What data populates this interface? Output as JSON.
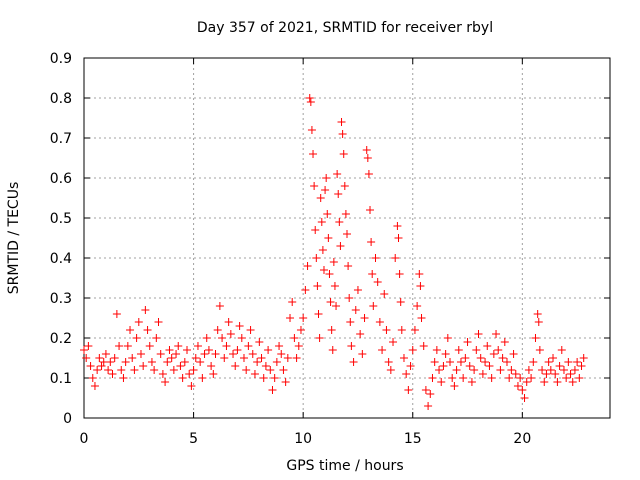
{
  "chart_data": {
    "type": "scatter",
    "title": "Day 357 of 2021, SRMTID for receiver rbyl",
    "xlabel": "GPS time / hours",
    "ylabel": "SRMTID / TECUs",
    "xlim": [
      0,
      24
    ],
    "ylim": [
      0,
      0.9
    ],
    "x_ticks": [
      "0",
      "5",
      "10",
      "15",
      "20"
    ],
    "y_ticks": [
      "0",
      "0.1",
      "0.2",
      "0.3",
      "0.4",
      "0.5",
      "0.6",
      "0.7",
      "0.8",
      "0.9"
    ],
    "grid": true,
    "marker": "plus",
    "series": [
      {
        "name": "SRMTID",
        "color": "#ff0000",
        "points": [
          [
            0.0,
            0.17
          ],
          [
            0.1,
            0.15
          ],
          [
            0.2,
            0.18
          ],
          [
            0.3,
            0.13
          ],
          [
            0.4,
            0.1
          ],
          [
            0.5,
            0.08
          ],
          [
            0.6,
            0.12
          ],
          [
            0.7,
            0.15
          ],
          [
            0.8,
            0.13
          ],
          [
            0.9,
            0.14
          ],
          [
            1.0,
            0.16
          ],
          [
            1.1,
            0.12
          ],
          [
            1.2,
            0.14
          ],
          [
            1.3,
            0.11
          ],
          [
            1.4,
            0.15
          ],
          [
            1.5,
            0.26
          ],
          [
            1.6,
            0.18
          ],
          [
            1.7,
            0.12
          ],
          [
            1.8,
            0.1
          ],
          [
            1.9,
            0.14
          ],
          [
            2.0,
            0.18
          ],
          [
            2.1,
            0.22
          ],
          [
            2.2,
            0.15
          ],
          [
            2.3,
            0.12
          ],
          [
            2.4,
            0.2
          ],
          [
            2.5,
            0.24
          ],
          [
            2.6,
            0.16
          ],
          [
            2.7,
            0.13
          ],
          [
            2.8,
            0.27
          ],
          [
            2.9,
            0.22
          ],
          [
            3.0,
            0.18
          ],
          [
            3.1,
            0.14
          ],
          [
            3.2,
            0.12
          ],
          [
            3.3,
            0.2
          ],
          [
            3.4,
            0.24
          ],
          [
            3.5,
            0.16
          ],
          [
            3.6,
            0.11
          ],
          [
            3.7,
            0.09
          ],
          [
            3.8,
            0.14
          ],
          [
            3.9,
            0.17
          ],
          [
            4.0,
            0.15
          ],
          [
            4.1,
            0.12
          ],
          [
            4.2,
            0.16
          ],
          [
            4.3,
            0.18
          ],
          [
            4.4,
            0.13
          ],
          [
            4.5,
            0.1
          ],
          [
            4.6,
            0.14
          ],
          [
            4.7,
            0.17
          ],
          [
            4.8,
            0.11
          ],
          [
            4.9,
            0.08
          ],
          [
            5.0,
            0.12
          ],
          [
            5.1,
            0.15
          ],
          [
            5.2,
            0.18
          ],
          [
            5.3,
            0.14
          ],
          [
            5.4,
            0.1
          ],
          [
            5.5,
            0.16
          ],
          [
            5.6,
            0.2
          ],
          [
            5.7,
            0.17
          ],
          [
            5.8,
            0.13
          ],
          [
            5.9,
            0.11
          ],
          [
            6.0,
            0.16
          ],
          [
            6.1,
            0.22
          ],
          [
            6.2,
            0.28
          ],
          [
            6.3,
            0.2
          ],
          [
            6.4,
            0.15
          ],
          [
            6.5,
            0.18
          ],
          [
            6.6,
            0.24
          ],
          [
            6.7,
            0.21
          ],
          [
            6.8,
            0.16
          ],
          [
            6.9,
            0.13
          ],
          [
            7.0,
            0.17
          ],
          [
            7.1,
            0.23
          ],
          [
            7.2,
            0.2
          ],
          [
            7.3,
            0.15
          ],
          [
            7.4,
            0.12
          ],
          [
            7.5,
            0.18
          ],
          [
            7.6,
            0.22
          ],
          [
            7.7,
            0.16
          ],
          [
            7.8,
            0.11
          ],
          [
            7.9,
            0.14
          ],
          [
            8.0,
            0.19
          ],
          [
            8.1,
            0.15
          ],
          [
            8.2,
            0.1
          ],
          [
            8.3,
            0.13
          ],
          [
            8.4,
            0.17
          ],
          [
            8.5,
            0.12
          ],
          [
            8.6,
            0.07
          ],
          [
            8.7,
            0.1
          ],
          [
            8.8,
            0.14
          ],
          [
            8.9,
            0.18
          ],
          [
            9.0,
            0.16
          ],
          [
            9.1,
            0.12
          ],
          [
            9.2,
            0.09
          ],
          [
            9.3,
            0.15
          ],
          [
            9.4,
            0.25
          ],
          [
            9.5,
            0.29
          ],
          [
            9.6,
            0.2
          ],
          [
            9.7,
            0.15
          ],
          [
            9.8,
            0.18
          ],
          [
            9.9,
            0.22
          ],
          [
            10.0,
            0.25
          ],
          [
            10.1,
            0.32
          ],
          [
            10.2,
            0.38
          ],
          [
            10.3,
            0.8
          ],
          [
            10.35,
            0.79
          ],
          [
            10.4,
            0.72
          ],
          [
            10.45,
            0.66
          ],
          [
            10.5,
            0.58
          ],
          [
            10.55,
            0.47
          ],
          [
            10.6,
            0.4
          ],
          [
            10.65,
            0.33
          ],
          [
            10.7,
            0.26
          ],
          [
            10.75,
            0.2
          ],
          [
            10.8,
            0.55
          ],
          [
            10.85,
            0.49
          ],
          [
            10.9,
            0.42
          ],
          [
            10.95,
            0.37
          ],
          [
            11.0,
            0.57
          ],
          [
            11.05,
            0.6
          ],
          [
            11.1,
            0.51
          ],
          [
            11.15,
            0.45
          ],
          [
            11.2,
            0.36
          ],
          [
            11.25,
            0.29
          ],
          [
            11.3,
            0.22
          ],
          [
            11.35,
            0.17
          ],
          [
            11.4,
            0.39
          ],
          [
            11.45,
            0.33
          ],
          [
            11.5,
            0.28
          ],
          [
            11.55,
            0.61
          ],
          [
            11.6,
            0.56
          ],
          [
            11.65,
            0.49
          ],
          [
            11.7,
            0.43
          ],
          [
            11.75,
            0.74
          ],
          [
            11.8,
            0.71
          ],
          [
            11.85,
            0.66
          ],
          [
            11.9,
            0.58
          ],
          [
            11.95,
            0.51
          ],
          [
            12.0,
            0.46
          ],
          [
            12.05,
            0.38
          ],
          [
            12.1,
            0.3
          ],
          [
            12.15,
            0.24
          ],
          [
            12.2,
            0.18
          ],
          [
            12.3,
            0.14
          ],
          [
            12.4,
            0.27
          ],
          [
            12.5,
            0.32
          ],
          [
            12.6,
            0.21
          ],
          [
            12.7,
            0.16
          ],
          [
            12.8,
            0.25
          ],
          [
            12.9,
            0.67
          ],
          [
            12.95,
            0.65
          ],
          [
            13.0,
            0.61
          ],
          [
            13.05,
            0.52
          ],
          [
            13.1,
            0.44
          ],
          [
            13.15,
            0.36
          ],
          [
            13.2,
            0.28
          ],
          [
            13.3,
            0.4
          ],
          [
            13.4,
            0.34
          ],
          [
            13.5,
            0.24
          ],
          [
            13.6,
            0.17
          ],
          [
            13.7,
            0.31
          ],
          [
            13.8,
            0.22
          ],
          [
            13.9,
            0.14
          ],
          [
            14.0,
            0.12
          ],
          [
            14.1,
            0.19
          ],
          [
            14.2,
            0.4
          ],
          [
            14.3,
            0.48
          ],
          [
            14.35,
            0.45
          ],
          [
            14.4,
            0.36
          ],
          [
            14.45,
            0.29
          ],
          [
            14.5,
            0.22
          ],
          [
            14.6,
            0.15
          ],
          [
            14.7,
            0.11
          ],
          [
            14.8,
            0.07
          ],
          [
            14.9,
            0.13
          ],
          [
            15.0,
            0.17
          ],
          [
            15.1,
            0.22
          ],
          [
            15.2,
            0.28
          ],
          [
            15.3,
            0.36
          ],
          [
            15.35,
            0.33
          ],
          [
            15.4,
            0.25
          ],
          [
            15.5,
            0.18
          ],
          [
            15.6,
            0.07
          ],
          [
            15.7,
            0.03
          ],
          [
            15.8,
            0.06
          ],
          [
            15.9,
            0.1
          ],
          [
            16.0,
            0.14
          ],
          [
            16.1,
            0.17
          ],
          [
            16.2,
            0.12
          ],
          [
            16.3,
            0.09
          ],
          [
            16.4,
            0.13
          ],
          [
            16.5,
            0.16
          ],
          [
            16.6,
            0.2
          ],
          [
            16.7,
            0.14
          ],
          [
            16.8,
            0.1
          ],
          [
            16.9,
            0.08
          ],
          [
            17.0,
            0.12
          ],
          [
            17.1,
            0.17
          ],
          [
            17.2,
            0.14
          ],
          [
            17.3,
            0.1
          ],
          [
            17.4,
            0.15
          ],
          [
            17.5,
            0.19
          ],
          [
            17.6,
            0.13
          ],
          [
            17.7,
            0.09
          ],
          [
            17.8,
            0.12
          ],
          [
            17.9,
            0.17
          ],
          [
            18.0,
            0.21
          ],
          [
            18.1,
            0.15
          ],
          [
            18.2,
            0.11
          ],
          [
            18.3,
            0.14
          ],
          [
            18.4,
            0.18
          ],
          [
            18.5,
            0.13
          ],
          [
            18.6,
            0.1
          ],
          [
            18.7,
            0.16
          ],
          [
            18.8,
            0.21
          ],
          [
            18.9,
            0.17
          ],
          [
            19.0,
            0.12
          ],
          [
            19.1,
            0.15
          ],
          [
            19.2,
            0.19
          ],
          [
            19.3,
            0.14
          ],
          [
            19.4,
            0.1
          ],
          [
            19.5,
            0.12
          ],
          [
            19.6,
            0.16
          ],
          [
            19.7,
            0.11
          ],
          [
            19.8,
            0.08
          ],
          [
            19.9,
            0.1
          ],
          [
            20.0,
            0.07
          ],
          [
            20.1,
            0.05
          ],
          [
            20.2,
            0.09
          ],
          [
            20.3,
            0.12
          ],
          [
            20.4,
            0.1
          ],
          [
            20.5,
            0.14
          ],
          [
            20.6,
            0.2
          ],
          [
            20.7,
            0.26
          ],
          [
            20.75,
            0.24
          ],
          [
            20.8,
            0.17
          ],
          [
            20.9,
            0.12
          ],
          [
            21.0,
            0.09
          ],
          [
            21.1,
            0.11
          ],
          [
            21.2,
            0.14
          ],
          [
            21.3,
            0.12
          ],
          [
            21.4,
            0.15
          ],
          [
            21.5,
            0.11
          ],
          [
            21.6,
            0.09
          ],
          [
            21.7,
            0.13
          ],
          [
            21.8,
            0.17
          ],
          [
            21.9,
            0.12
          ],
          [
            22.0,
            0.1
          ],
          [
            22.1,
            0.14
          ],
          [
            22.2,
            0.11
          ],
          [
            22.3,
            0.09
          ],
          [
            22.4,
            0.12
          ],
          [
            22.5,
            0.14
          ],
          [
            22.6,
            0.1
          ],
          [
            22.7,
            0.13
          ],
          [
            22.8,
            0.15
          ]
        ]
      }
    ]
  }
}
